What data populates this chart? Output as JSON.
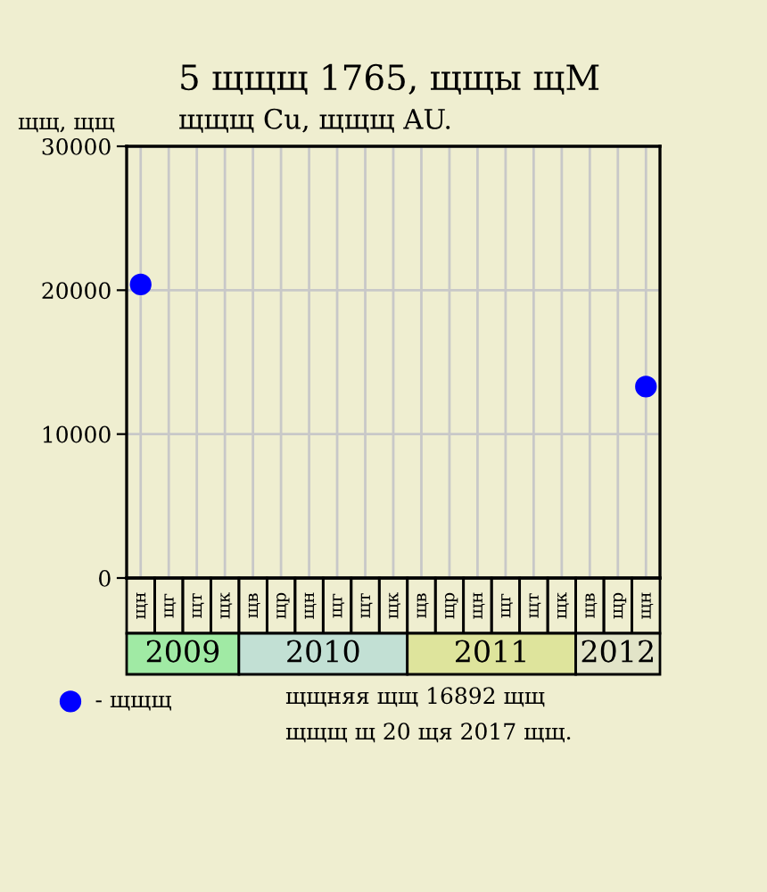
{
  "chart_data": {
    "type": "scatter",
    "title": "5 щщщ 1765, щщы щМ",
    "subtitle": "щщщ Cu, щщщ AU.",
    "ylabel": "щщ, щщ",
    "categories": [
      "щн",
      "щг",
      "щт",
      "щк",
      "щв",
      "щр",
      "щн",
      "щг",
      "щт",
      "щк",
      "щв",
      "щр",
      "щн",
      "щг",
      "щт",
      "щк",
      "щв",
      "щр",
      "щн"
    ],
    "series": [
      {
        "name": "- щщщ",
        "color": "#0000ff",
        "values": [
          20400,
          null,
          null,
          null,
          null,
          null,
          null,
          null,
          null,
          null,
          null,
          null,
          null,
          null,
          null,
          null,
          null,
          null,
          13300
        ]
      }
    ],
    "ylim": [
      0,
      30000
    ],
    "yticks": [
      0,
      10000,
      20000,
      30000
    ],
    "grid": true,
    "marker": "circle",
    "legend": "bottom left",
    "annotations": [
      "2009",
      "2010",
      "2011",
      "2012",
      "щщняя щщ 16892 щщ",
      "щщщ щ 20 щя 2017 щщ."
    ]
  }
}
